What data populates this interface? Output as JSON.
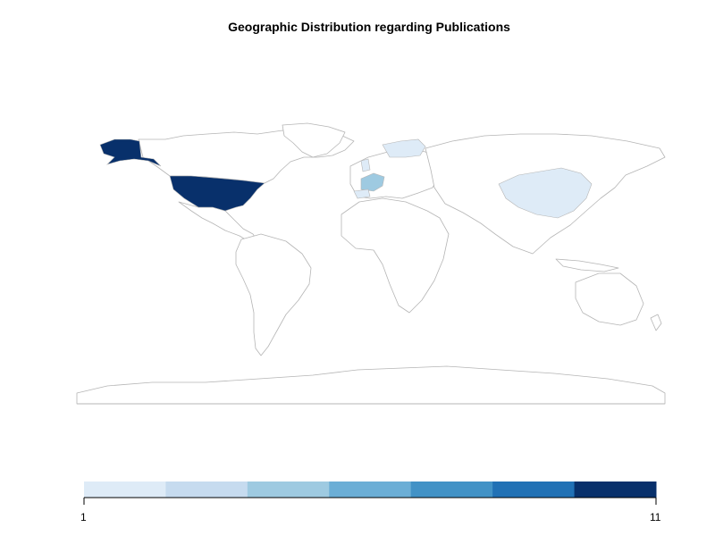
{
  "title": "Geographic Distribution regarding Publications",
  "legend": {
    "min_label": "1",
    "max_label": "11",
    "colors": [
      "#deebf7",
      "#c6dbef",
      "#9ecae1",
      "#6baed6",
      "#4292c6",
      "#2171b5",
      "#08306b"
    ]
  },
  "regions": [
    {
      "name": "United States",
      "fill": "#08306b"
    },
    {
      "name": "France",
      "fill": "#9ecae1"
    },
    {
      "name": "China",
      "fill": "#deebf7"
    },
    {
      "name": "United Kingdom",
      "fill": "#deebf7"
    },
    {
      "name": "Finland",
      "fill": "#deebf7"
    },
    {
      "name": "Spain",
      "fill": "#deebf7"
    }
  ],
  "colors": {
    "border": "#b5b5b5",
    "land": "#ffffff"
  }
}
